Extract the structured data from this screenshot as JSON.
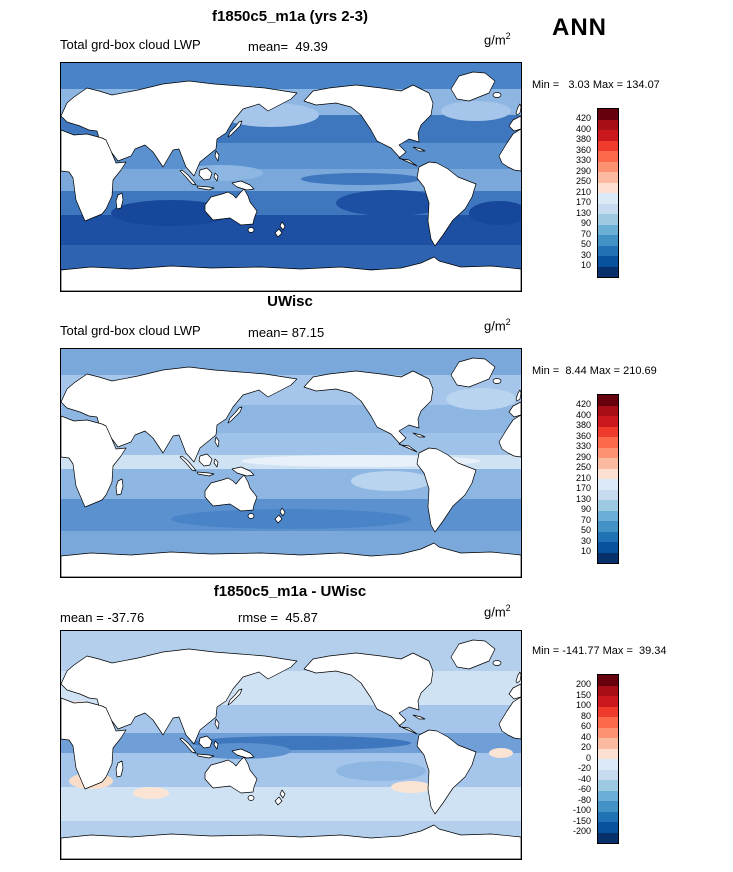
{
  "header": {
    "season": "ANN"
  },
  "panels": [
    {
      "title": "f1850c5_m1a (yrs 2-3)",
      "var_label": "Total grd-box cloud LWP",
      "mean_label": "mean=  49.39",
      "units_base": "g/m",
      "units_exp": "2",
      "minmax": "Min =   3.03 Max = 134.07"
    },
    {
      "title": "UWisc",
      "var_label": "Total grd-box cloud LWP",
      "mean_label": "mean= 87.15",
      "units_base": "g/m",
      "units_exp": "2",
      "minmax": "Min =  8.44 Max = 210.69"
    },
    {
      "title": "f1850c5_m1a - UWisc",
      "mean_label": "mean = -37.76",
      "rmse_label": "rmse =  45.87",
      "units_base": "g/m",
      "units_exp": "2",
      "minmax": "Min = -141.77 Max =  39.34"
    }
  ],
  "chart_data": [
    {
      "type": "heatmap",
      "title": "f1850c5_m1a (yrs 2-3)",
      "variable": "Total grd-box cloud LWP",
      "season": "ANN",
      "units": "g/m2",
      "projection": "global lat-lon map, 0-360E",
      "mean": 49.39,
      "min": 3.03,
      "max": 134.07,
      "colorbar": {
        "orientation": "vertical",
        "ticks": [
          420,
          400,
          380,
          360,
          330,
          290,
          250,
          210,
          170,
          130,
          90,
          70,
          50,
          30,
          10
        ],
        "colors": [
          "#67000d",
          "#a50f15",
          "#cb181d",
          "#ef3b2c",
          "#fb6a4a",
          "#fc9272",
          "#fcbba1",
          "#fee0d2",
          "#dce9f6",
          "#c6dbef",
          "#9ecae1",
          "#6baed6",
          "#4292c6",
          "#2171b5",
          "#08519c",
          "#08306b"
        ]
      }
    },
    {
      "type": "heatmap",
      "title": "UWisc",
      "variable": "Total grd-box cloud LWP",
      "season": "ANN",
      "units": "g/m2",
      "projection": "global lat-lon map, 0-360E",
      "mean": 87.15,
      "min": 8.44,
      "max": 210.69,
      "colorbar": {
        "orientation": "vertical",
        "ticks": [
          420,
          400,
          380,
          360,
          330,
          290,
          250,
          210,
          170,
          130,
          90,
          70,
          50,
          30,
          10
        ],
        "colors": [
          "#67000d",
          "#a50f15",
          "#cb181d",
          "#ef3b2c",
          "#fb6a4a",
          "#fc9272",
          "#fcbba1",
          "#fee0d2",
          "#dce9f6",
          "#c6dbef",
          "#9ecae1",
          "#6baed6",
          "#4292c6",
          "#2171b5",
          "#08519c",
          "#08306b"
        ]
      }
    },
    {
      "type": "heatmap",
      "title": "f1850c5_m1a - UWisc",
      "variable": "Total grd-box cloud LWP difference",
      "season": "ANN",
      "units": "g/m2",
      "projection": "global lat-lon map, 0-360E",
      "mean": -37.76,
      "rmse": 45.87,
      "min": -141.77,
      "max": 39.34,
      "colorbar": {
        "orientation": "vertical",
        "ticks": [
          200,
          150,
          100,
          80,
          60,
          40,
          20,
          0,
          -20,
          -40,
          -60,
          -80,
          -100,
          -150,
          -200
        ],
        "colors": [
          "#67000d",
          "#a50f15",
          "#cb181d",
          "#ef3b2c",
          "#fb6a4a",
          "#fc9272",
          "#fcbba1",
          "#fee0d2",
          "#dce9f6",
          "#c6dbef",
          "#9ecae1",
          "#6baed6",
          "#4292c6",
          "#2171b5",
          "#08519c",
          "#08306b"
        ]
      }
    }
  ]
}
